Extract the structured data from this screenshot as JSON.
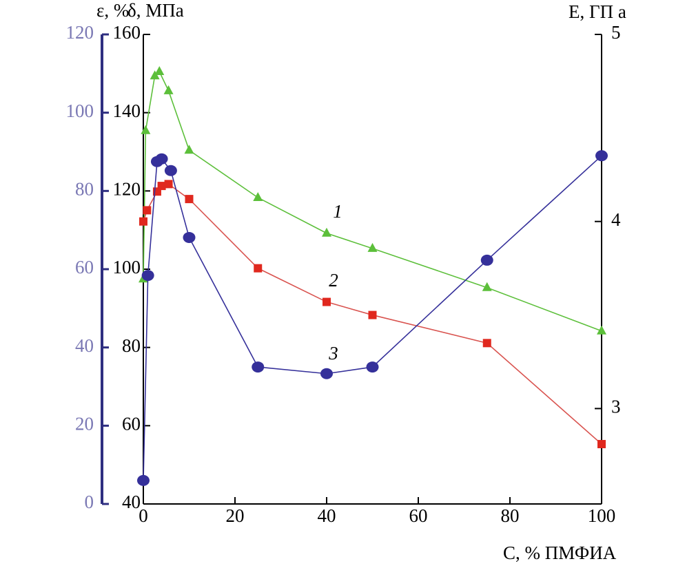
{
  "chart_data": {
    "type": "line",
    "xlabel": "C, % ПМФИА",
    "ylabel": "δ, МПа",
    "y2label": "E, ГП а",
    "y3label": "ε, %",
    "xlim": [
      0,
      100
    ],
    "xticks": [
      0,
      20,
      40,
      60,
      80,
      100
    ],
    "ylim": [
      40,
      160
    ],
    "yticks": [
      40,
      60,
      80,
      100,
      120,
      140,
      160
    ],
    "y2lim": [
      2.49,
      5
    ],
    "y2ticks": [
      3,
      4,
      5
    ],
    "y3lim": [
      0,
      120
    ],
    "y3ticks": [
      0,
      20,
      40,
      60,
      80,
      100,
      120
    ],
    "series": [
      {
        "name": "1",
        "color": "#5cbf3a",
        "marker": "triangle",
        "axis": "y",
        "x": [
          0,
          0.5,
          2.5,
          3.5,
          5.5,
          10,
          25,
          40,
          50,
          75,
          100
        ],
        "values": [
          97.5,
          135.4,
          149.4,
          150.5,
          145.6,
          130.4,
          118.3,
          109.2,
          105.3,
          95.3,
          84.2
        ]
      },
      {
        "name": "2",
        "color": "#e0281e",
        "line_color": "#d9534f",
        "marker": "square",
        "axis": "y2",
        "x": [
          0,
          0.8,
          3,
          4,
          5.5,
          10,
          25,
          40,
          50,
          75,
          100
        ],
        "values": [
          4.0,
          4.06,
          4.16,
          4.19,
          4.2,
          4.12,
          3.75,
          3.57,
          3.5,
          3.35,
          2.81
        ]
      },
      {
        "name": "3",
        "color": "#35309a",
        "marker": "circle",
        "axis": "y3",
        "x": [
          0,
          1,
          3,
          4,
          6,
          10,
          25,
          40,
          50,
          75,
          100
        ],
        "values": [
          6.0,
          58.4,
          87.5,
          88.2,
          85.2,
          68.1,
          35.0,
          33.3,
          35.0,
          62.3,
          89.0
        ]
      }
    ]
  }
}
